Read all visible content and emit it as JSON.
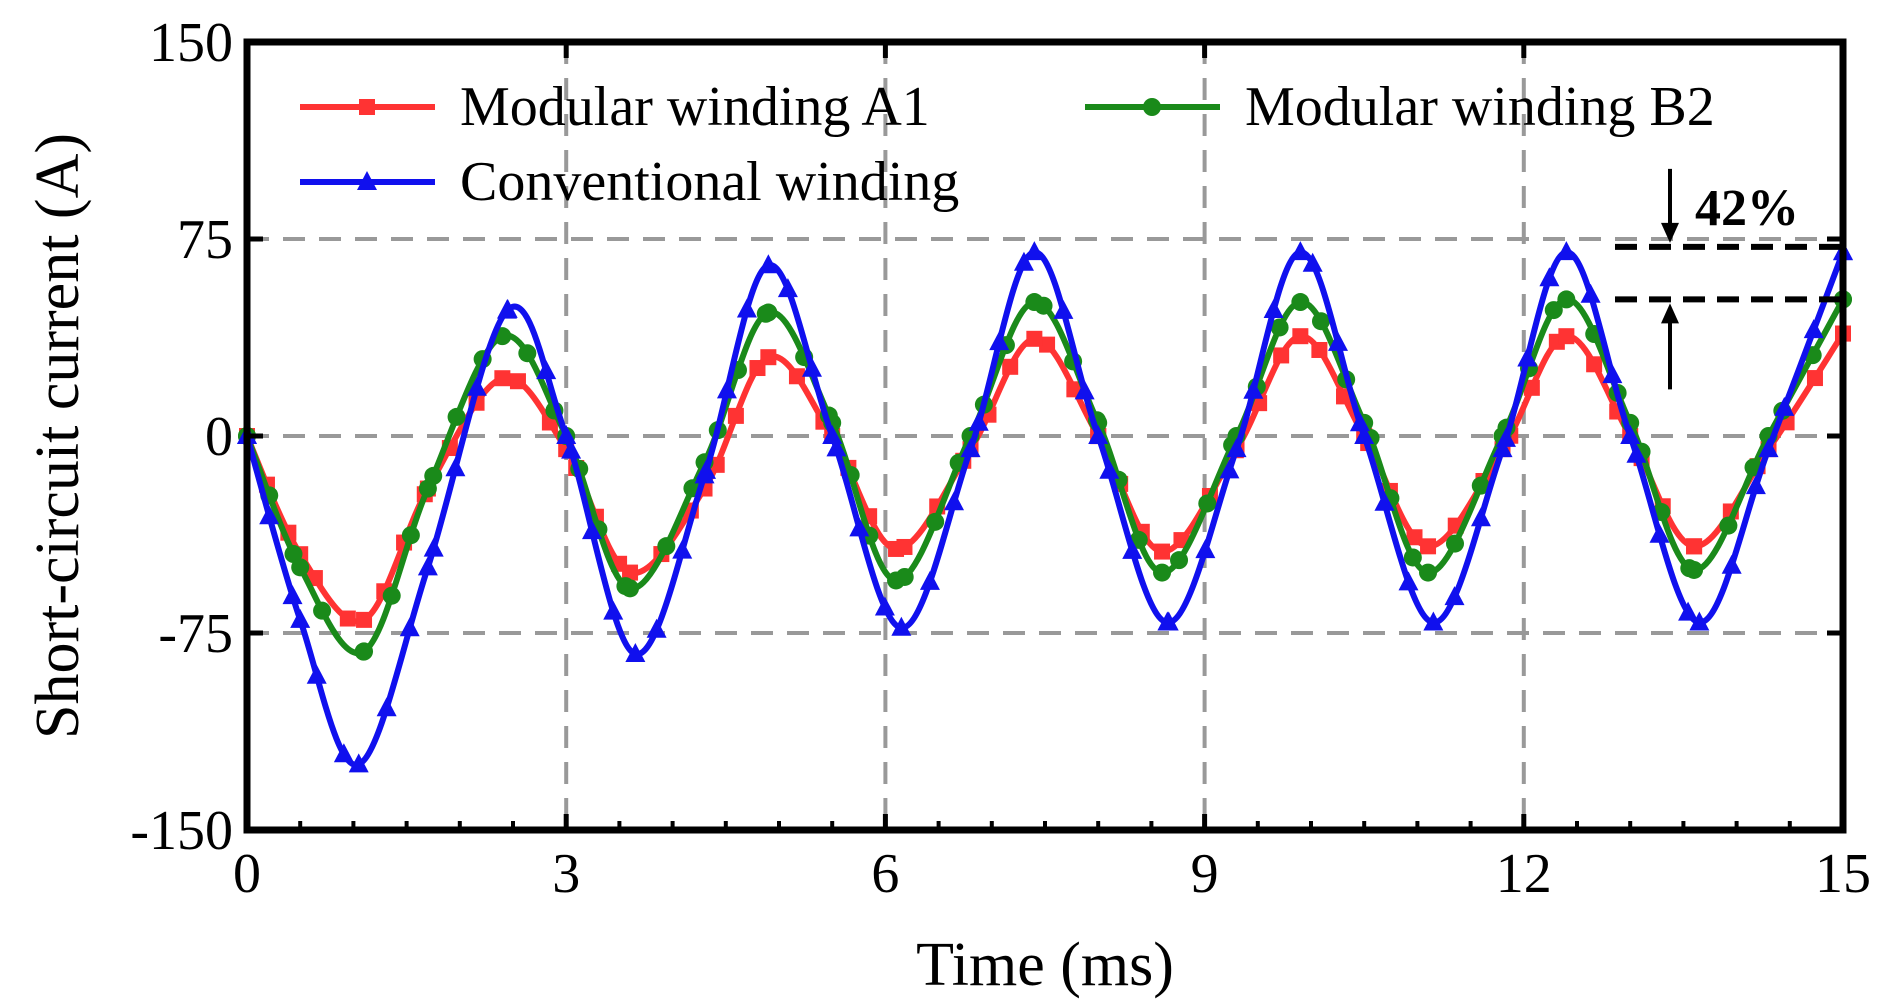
{
  "chart_data": {
    "type": "line",
    "title": "",
    "xlabel": "Time (ms)",
    "ylabel": "Short-circuit current (A)",
    "xlim": [
      0,
      15
    ],
    "ylim": [
      -150,
      150
    ],
    "xticks": [
      0,
      3,
      6,
      9,
      12,
      15
    ],
    "yticks": [
      -150,
      -75,
      0,
      75,
      150
    ],
    "xtick_labels": [
      "0",
      "3",
      "6",
      "9",
      "12",
      "15"
    ],
    "ytick_labels": [
      "-150",
      "-75",
      "0",
      "75",
      "150"
    ],
    "grid": true,
    "legend_position": "top",
    "series": [
      {
        "name": "Modular winding A1",
        "color": "#ff3333",
        "marker": "square",
        "x": [
          0.0,
          0.5,
          1.1,
          1.7,
          2.4,
          3.0,
          3.6,
          4.3,
          4.9,
          5.5,
          6.1,
          6.8,
          7.4,
          8.0,
          8.6,
          9.3,
          9.9,
          10.5,
          11.1,
          11.8,
          12.4,
          13.0,
          13.6,
          14.3,
          15.0
        ],
        "values": [
          0,
          -45,
          -70,
          -20,
          22,
          -5,
          -52,
          -20,
          30,
          0,
          -43,
          -5,
          37,
          0,
          -44,
          -5,
          38,
          0,
          -42,
          -5,
          38,
          0,
          -42,
          -5,
          39
        ]
      },
      {
        "name": "Modular winding B2",
        "color": "#1a8a1a",
        "marker": "circle",
        "x": [
          0.0,
          0.5,
          1.1,
          1.7,
          2.4,
          3.0,
          3.6,
          4.3,
          4.9,
          5.5,
          6.1,
          6.8,
          7.4,
          8.0,
          8.6,
          9.3,
          9.9,
          10.5,
          11.1,
          11.8,
          12.4,
          13.0,
          13.6,
          14.3,
          15.0
        ],
        "values": [
          0,
          -50,
          -82,
          -20,
          38,
          0,
          -58,
          -10,
          47,
          5,
          -55,
          0,
          51,
          5,
          -52,
          0,
          51,
          5,
          -52,
          0,
          52,
          5,
          -51,
          0,
          52
        ]
      },
      {
        "name": "Conventional winding",
        "color": "#1010ee",
        "marker": "triangle",
        "x": [
          0.0,
          0.5,
          1.05,
          1.7,
          2.45,
          3.0,
          3.65,
          4.3,
          4.9,
          5.5,
          6.15,
          6.8,
          7.4,
          8.0,
          8.65,
          9.3,
          9.9,
          10.5,
          11.15,
          11.8,
          12.4,
          13.0,
          13.65,
          14.3,
          15.0
        ],
        "values": [
          0,
          -70,
          -125,
          -50,
          48,
          0,
          -83,
          -15,
          65,
          0,
          -73,
          -5,
          70,
          0,
          -71,
          -5,
          70,
          0,
          -71,
          -5,
          70,
          0,
          -71,
          -5,
          70
        ]
      }
    ],
    "annotations": [
      {
        "text": "42%",
        "from_value": 72,
        "to_value": 52
      }
    ]
  }
}
